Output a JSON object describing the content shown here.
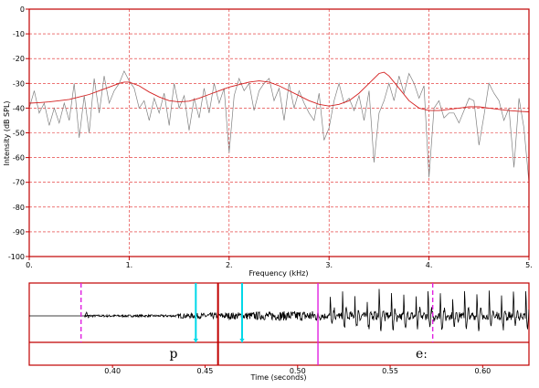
{
  "spectrum": {
    "chart_data": {
      "type": "line",
      "xlabel": "Frequency (kHz)",
      "ylabel": "Intensity (dB SPL)",
      "xlim": [
        0,
        5
      ],
      "ylim": [
        -100,
        0
      ],
      "x_ticks": [
        0,
        1,
        2,
        3,
        4,
        5
      ],
      "x_tick_labels": [
        "0.",
        "1.",
        "2.",
        "3.",
        "4.",
        "5."
      ],
      "y_ticks": [
        0,
        -10,
        -20,
        -30,
        -40,
        -50,
        -60,
        -70,
        -80,
        -90,
        -100
      ],
      "y_tick_labels": [
        "0",
        "-10",
        "-20",
        "-30",
        "-40",
        "-50",
        "-60",
        "-70",
        "-80",
        "-90",
        "-100"
      ],
      "grid": true,
      "series": [
        {
          "color": "#808080",
          "x": [
            0.0,
            0.05,
            0.1,
            0.15,
            0.2,
            0.25,
            0.3,
            0.35,
            0.4,
            0.45,
            0.5,
            0.55,
            0.6,
            0.65,
            0.7,
            0.75,
            0.8,
            0.85,
            0.9,
            0.95,
            1.0,
            1.05,
            1.1,
            1.15,
            1.2,
            1.25,
            1.3,
            1.35,
            1.4,
            1.45,
            1.5,
            1.55,
            1.6,
            1.65,
            1.7,
            1.75,
            1.8,
            1.85,
            1.9,
            1.95,
            2.0,
            2.05,
            2.1,
            2.15,
            2.2,
            2.25,
            2.3,
            2.35,
            2.4,
            2.45,
            2.5,
            2.55,
            2.6,
            2.65,
            2.7,
            2.75,
            2.8,
            2.85,
            2.9,
            2.95,
            3.0,
            3.05,
            3.1,
            3.15,
            3.2,
            3.25,
            3.3,
            3.35,
            3.4,
            3.45,
            3.5,
            3.55,
            3.6,
            3.65,
            3.7,
            3.75,
            3.8,
            3.85,
            3.9,
            3.95,
            4.0,
            4.05,
            4.1,
            4.15,
            4.2,
            4.25,
            4.3,
            4.35,
            4.4,
            4.45,
            4.5,
            4.55,
            4.6,
            4.65,
            4.7,
            4.75,
            4.8,
            4.85,
            4.9,
            4.95,
            5.0
          ],
          "y": [
            -40,
            -33,
            -42,
            -38,
            -47,
            -40,
            -46,
            -38,
            -45,
            -30,
            -52,
            -35,
            -50,
            -28,
            -42,
            -27,
            -38,
            -33,
            -30,
            -25,
            -29,
            -32,
            -40,
            -37,
            -45,
            -36,
            -42,
            -34,
            -47,
            -30,
            -40,
            -35,
            -49,
            -36,
            -44,
            -32,
            -42,
            -30,
            -38,
            -32,
            -58,
            -35,
            -28,
            -33,
            -30,
            -41,
            -33,
            -30,
            -28,
            -37,
            -32,
            -45,
            -30,
            -40,
            -33,
            -38,
            -42,
            -45,
            -34,
            -53,
            -48,
            -37,
            -30,
            -38,
            -36,
            -41,
            -35,
            -45,
            -33,
            -62,
            -42,
            -37,
            -30,
            -37,
            -27,
            -34,
            -26,
            -30,
            -36,
            -31,
            -68,
            -40,
            -37,
            -44,
            -42,
            -42,
            -46,
            -41,
            -36,
            -37,
            -55,
            -43,
            -30,
            -34,
            -37,
            -45,
            -40,
            -64,
            -36,
            -48,
            -70
          ]
        },
        {
          "color": "#d42020",
          "x": [
            0.0,
            0.1,
            0.2,
            0.3,
            0.4,
            0.5,
            0.6,
            0.7,
            0.8,
            0.9,
            0.95,
            1.0,
            1.1,
            1.2,
            1.3,
            1.4,
            1.5,
            1.6,
            1.7,
            1.8,
            1.9,
            2.0,
            2.1,
            2.2,
            2.3,
            2.4,
            2.5,
            2.6,
            2.7,
            2.8,
            2.9,
            3.0,
            3.1,
            3.2,
            3.3,
            3.4,
            3.5,
            3.55,
            3.6,
            3.7,
            3.8,
            3.9,
            4.0,
            4.1,
            4.2,
            4.3,
            4.4,
            4.5,
            4.6,
            4.7,
            4.8,
            4.9,
            5.0
          ],
          "y": [
            -38,
            -37.8,
            -37.5,
            -37,
            -36.5,
            -35.5,
            -34.5,
            -33,
            -31.5,
            -30,
            -29.5,
            -29.5,
            -31,
            -33.5,
            -35.5,
            -37,
            -37.5,
            -37.2,
            -36,
            -34.5,
            -33,
            -31.5,
            -30.5,
            -29.5,
            -29,
            -29.5,
            -31,
            -33,
            -35,
            -37,
            -38.5,
            -39.2,
            -38.5,
            -37,
            -34,
            -30,
            -26,
            -25.5,
            -27,
            -32,
            -37,
            -40,
            -41,
            -41,
            -40.5,
            -40,
            -39.5,
            -39.5,
            -40,
            -40.5,
            -41,
            -41.3,
            -41.5
          ]
        }
      ]
    }
  },
  "waveform": {
    "chart_data": {
      "type": "line",
      "xlabel": "Time (seconds)",
      "xlim": [
        0.355,
        0.625
      ],
      "x_ticks": [
        0.4,
        0.45,
        0.5,
        0.55,
        0.6
      ],
      "x_tick_labels": [
        "0.40",
        "0.45",
        "0.50",
        "0.55",
        "0.60"
      ],
      "segments": [
        {
          "label": "p",
          "center": 0.433
        },
        {
          "label": "eː",
          "center": 0.567
        }
      ],
      "boundaries": [
        {
          "t": 0.511,
          "color": "#e020e0"
        }
      ],
      "cursors": [
        {
          "t": 0.383,
          "color": "#e020e0",
          "style": "dashed"
        },
        {
          "t": 0.573,
          "color": "#e020e0",
          "style": "dashed"
        },
        {
          "t": 0.445,
          "color": "#00d8e8",
          "style": "solid"
        },
        {
          "t": 0.47,
          "color": "#00d8e8",
          "style": "solid"
        },
        {
          "t": 0.457,
          "color": "#c00000",
          "style": "solid"
        }
      ],
      "signal": {
        "silence_end": 0.385,
        "burst_onset": 0.435,
        "voicing_onset": 0.511,
        "pitch_period": 0.0066
      }
    }
  }
}
